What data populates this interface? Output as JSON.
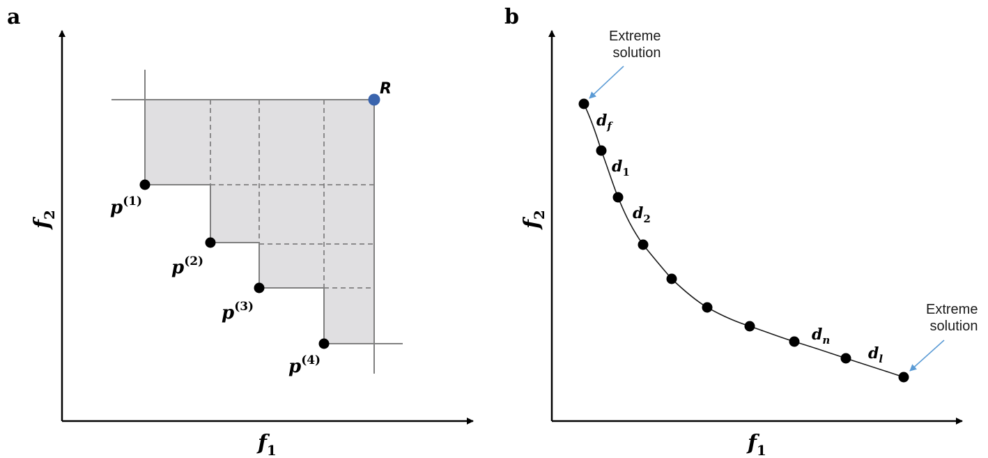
{
  "panel_a": {
    "letter": "a",
    "xlabel": {
      "base": "f",
      "sub": "1"
    },
    "ylabel": {
      "base": "f",
      "sub": "2"
    },
    "reference_label": "R",
    "points": [
      {
        "base": "p",
        "sup": "(1)"
      },
      {
        "base": "p",
        "sup": "(2)"
      },
      {
        "base": "p",
        "sup": "(3)"
      },
      {
        "base": "p",
        "sup": "(4)"
      }
    ],
    "colors": {
      "region_fill": "#e0dfe1",
      "reference_point": "#3a64ad",
      "solid_line": "#7f7f7f",
      "dashed_line": "#6f6f6f"
    }
  },
  "panel_b": {
    "letter": "b",
    "xlabel": {
      "base": "f",
      "sub": "1"
    },
    "ylabel": {
      "base": "f",
      "sub": "2"
    },
    "distance_labels": [
      {
        "base": "d",
        "sub": "f"
      },
      {
        "base": "d",
        "sub": "1"
      },
      {
        "base": "d",
        "sub": "2"
      },
      {
        "base": "d",
        "sub": "n"
      },
      {
        "base": "d",
        "sub": "l"
      }
    ],
    "annotations": [
      {
        "line1": "Extreme",
        "line2": "solution"
      },
      {
        "line1": "Extreme",
        "line2": "solution"
      }
    ],
    "colors": {
      "arrow": "#5b9bd5",
      "point": "#000000"
    }
  }
}
